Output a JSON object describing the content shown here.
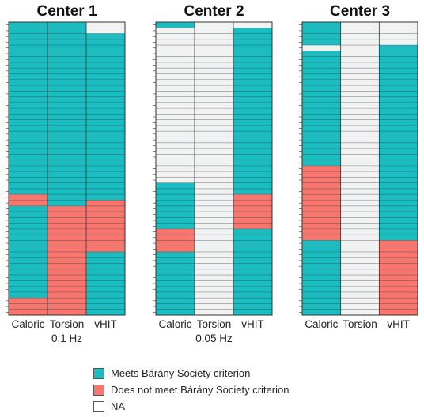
{
  "chart_data": {
    "type": "heatmap",
    "category_labels": [
      "Meets Bárány Society criterion",
      "Does not meet Bárány Society criterion",
      "NA"
    ],
    "colors": {
      "meets": "#1BBDC0",
      "notmeets": "#F8766D",
      "na": "#F2F2F2"
    },
    "panels": [
      {
        "title": "Center 1",
        "columns": [
          "Caloric",
          "Torsion",
          "vHIT"
        ],
        "sublabel": "0.1 Hz",
        "rows": 51,
        "segments": [
          [
            {
              "cat": "meets",
              "from": 0,
              "to": 30
            },
            {
              "cat": "notmeets",
              "from": 30,
              "to": 32
            },
            {
              "cat": "meets",
              "from": 32,
              "to": 48
            },
            {
              "cat": "notmeets",
              "from": 48,
              "to": 51
            }
          ],
          [
            {
              "cat": "meets",
              "from": 0,
              "to": 32
            },
            {
              "cat": "notmeets",
              "from": 32,
              "to": 51
            }
          ],
          [
            {
              "cat": "na",
              "from": 0,
              "to": 2
            },
            {
              "cat": "meets",
              "from": 2,
              "to": 31
            },
            {
              "cat": "notmeets",
              "from": 31,
              "to": 40
            },
            {
              "cat": "meets",
              "from": 40,
              "to": 51
            }
          ]
        ]
      },
      {
        "title": "Center 2",
        "columns": [
          "Caloric",
          "Torsion",
          "vHIT"
        ],
        "sublabel": "0.05 Hz",
        "rows": 51,
        "segments": [
          [
            {
              "cat": "meets",
              "from": 0,
              "to": 1
            },
            {
              "cat": "na",
              "from": 1,
              "to": 28
            },
            {
              "cat": "meets",
              "from": 28,
              "to": 36
            },
            {
              "cat": "notmeets",
              "from": 36,
              "to": 40
            },
            {
              "cat": "meets",
              "from": 40,
              "to": 51
            }
          ],
          [
            {
              "cat": "na",
              "from": 0,
              "to": 51
            }
          ],
          [
            {
              "cat": "na",
              "from": 0,
              "to": 1
            },
            {
              "cat": "meets",
              "from": 1,
              "to": 30
            },
            {
              "cat": "notmeets",
              "from": 30,
              "to": 36
            },
            {
              "cat": "meets",
              "from": 36,
              "to": 51
            }
          ]
        ]
      },
      {
        "title": "Center 3",
        "columns": [
          "Caloric",
          "Torsion",
          "vHIT"
        ],
        "sublabel": "",
        "rows": 51,
        "segments": [
          [
            {
              "cat": "meets",
              "from": 0,
              "to": 4
            },
            {
              "cat": "na",
              "from": 4,
              "to": 5
            },
            {
              "cat": "meets",
              "from": 5,
              "to": 25
            },
            {
              "cat": "notmeets",
              "from": 25,
              "to": 38
            },
            {
              "cat": "meets",
              "from": 38,
              "to": 51
            }
          ],
          [
            {
              "cat": "na",
              "from": 0,
              "to": 51
            }
          ],
          [
            {
              "cat": "na",
              "from": 0,
              "to": 4
            },
            {
              "cat": "meets",
              "from": 4,
              "to": 38
            },
            {
              "cat": "notmeets",
              "from": 38,
              "to": 51
            }
          ]
        ]
      }
    ]
  }
}
